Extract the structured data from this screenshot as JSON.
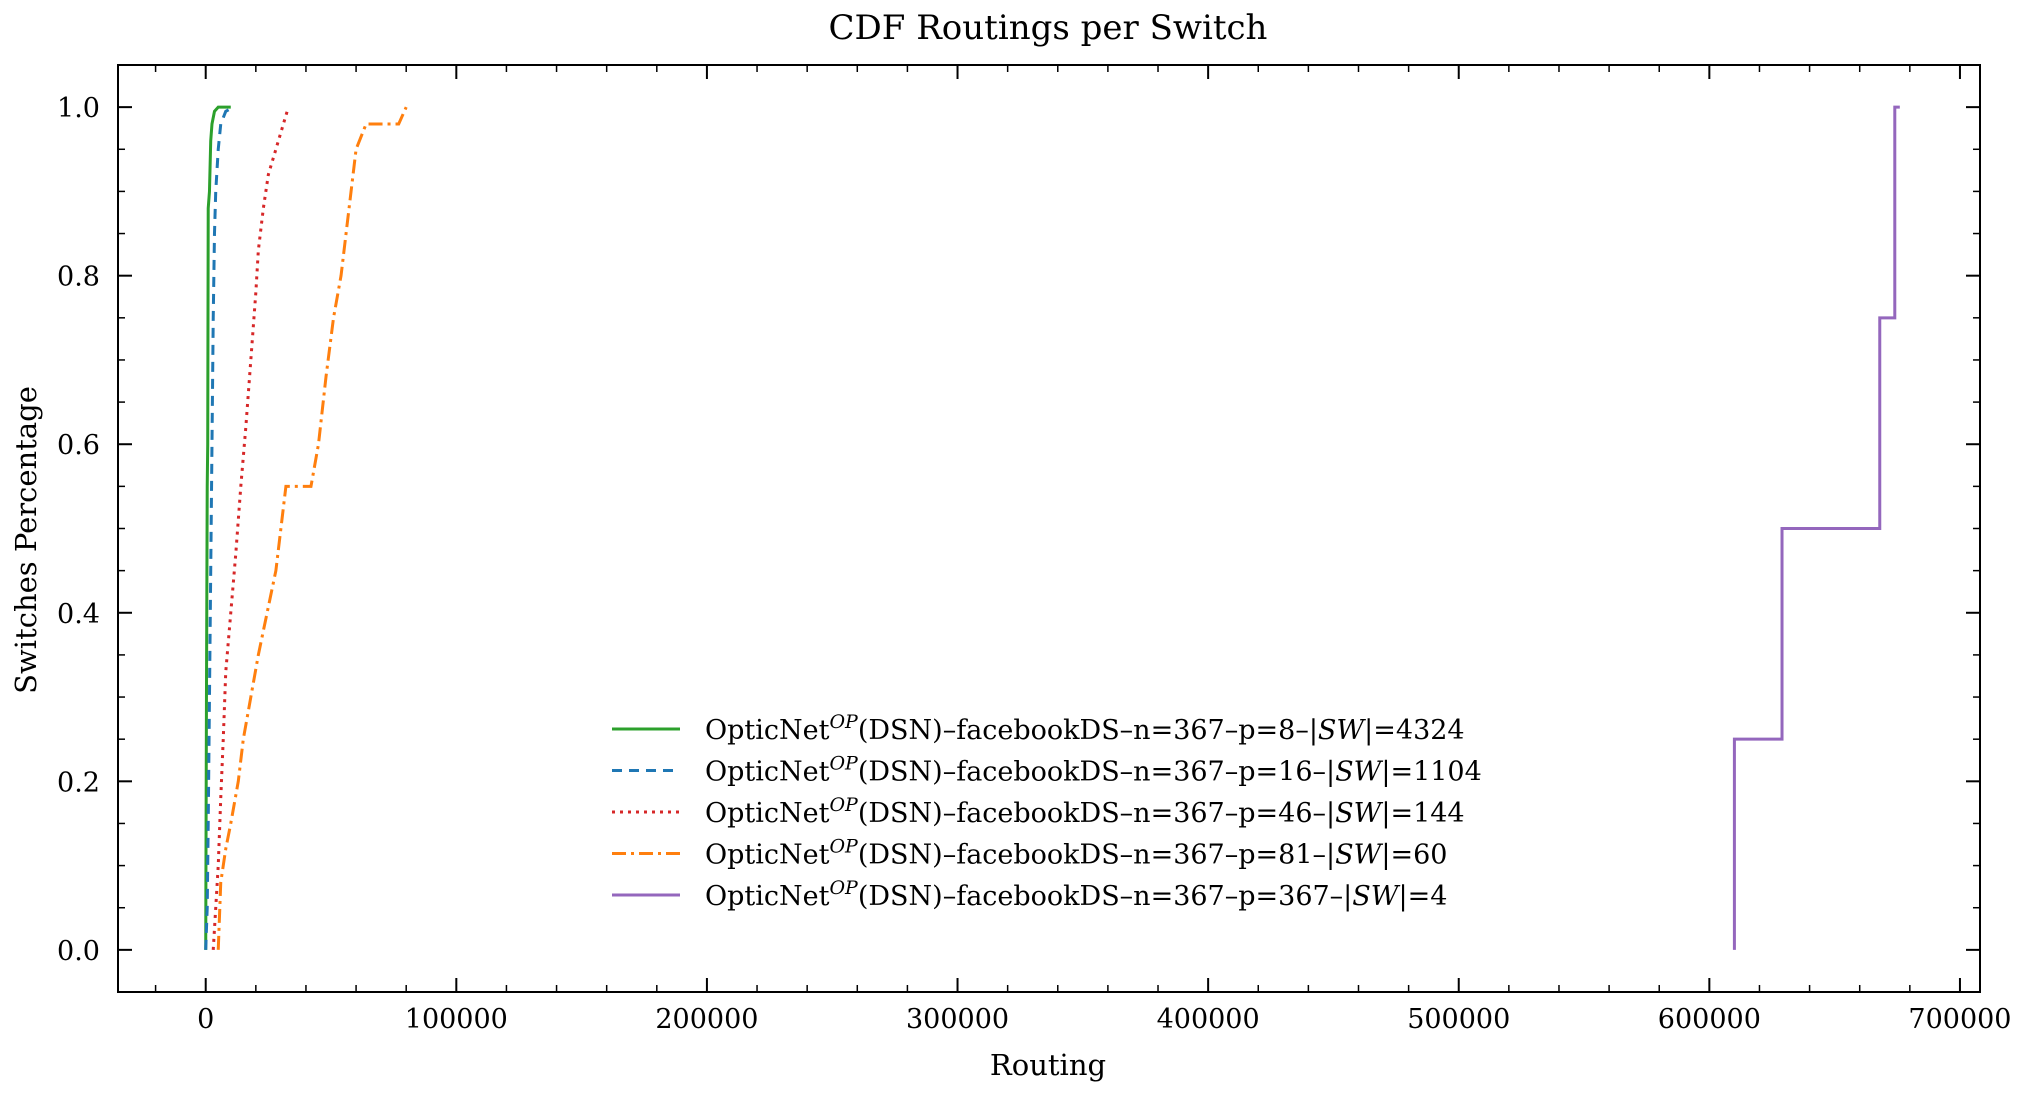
{
  "chart_data": {
    "type": "line",
    "title": "CDF Routings per Switch",
    "xlabel": "Routing",
    "ylabel": "Switches Percentage",
    "xlim": [
      -35000,
      708000
    ],
    "ylim": [
      -0.05,
      1.05
    ],
    "xticks": [
      0,
      100000,
      200000,
      300000,
      400000,
      500000,
      600000,
      700000
    ],
    "xtick_labels": [
      "0",
      "100000",
      "200000",
      "300000",
      "400000",
      "500000",
      "600000",
      "700000"
    ],
    "yticks": [
      0.0,
      0.2,
      0.4,
      0.6,
      0.8,
      1.0
    ],
    "ytick_labels": [
      "0.0",
      "0.2",
      "0.4",
      "0.6",
      "0.8",
      "1.0"
    ],
    "legend_position": "lower-center",
    "grid": false,
    "series": [
      {
        "name": "OpticNet^OP(DSN)–facebookDS–n=367–p=8–|SW|=4324",
        "legend_base": "OpticNet",
        "legend_sup": "OP",
        "legend_mid": "(DSN)–facebookDS–n=367–p=8–|",
        "legend_italic": "SW",
        "legend_end": "|=4324",
        "color": "#2ca02c",
        "dash": "",
        "points": [
          [
            0,
            0
          ],
          [
            300,
            0.3
          ],
          [
            600,
            0.55
          ],
          [
            800,
            0.6
          ],
          [
            1000,
            0.88
          ],
          [
            1500,
            0.9
          ],
          [
            2000,
            0.96
          ],
          [
            2500,
            0.98
          ],
          [
            3500,
            0.995
          ],
          [
            5000,
            1.0
          ],
          [
            10000,
            1.0
          ]
        ]
      },
      {
        "name": "OpticNet^OP(DSN)–facebookDS–n=367–p=16–|SW|=1104",
        "legend_base": "OpticNet",
        "legend_sup": "OP",
        "legend_mid": "(DSN)–facebookDS–n=367–p=16–|",
        "legend_italic": "SW",
        "legend_end": "|=1104",
        "color": "#1f77b4",
        "dash": "10,7",
        "points": [
          [
            0,
            0
          ],
          [
            600,
            0.05
          ],
          [
            1000,
            0.15
          ],
          [
            1500,
            0.3
          ],
          [
            2000,
            0.45
          ],
          [
            2500,
            0.6
          ],
          [
            3000,
            0.75
          ],
          [
            3500,
            0.85
          ],
          [
            4000,
            0.9
          ],
          [
            5000,
            0.95
          ],
          [
            6000,
            0.98
          ],
          [
            8000,
            0.995
          ],
          [
            11000,
            1.0
          ]
        ]
      },
      {
        "name": "OpticNet^OP(DSN)–facebookDS–n=367–p=46–|SW|=144",
        "legend_base": "OpticNet",
        "legend_sup": "OP",
        "legend_mid": "(DSN)–facebookDS–n=367–p=46–|",
        "legend_italic": "SW",
        "legend_end": "|=144",
        "color": "#d62728",
        "dash": "3,5",
        "points": [
          [
            3000,
            0
          ],
          [
            4000,
            0.05
          ],
          [
            5000,
            0.1
          ],
          [
            6000,
            0.18
          ],
          [
            7000,
            0.25
          ],
          [
            8000,
            0.33
          ],
          [
            10000,
            0.4
          ],
          [
            12000,
            0.47
          ],
          [
            14000,
            0.55
          ],
          [
            16000,
            0.62
          ],
          [
            18000,
            0.7
          ],
          [
            20000,
            0.78
          ],
          [
            21000,
            0.83
          ],
          [
            23000,
            0.88
          ],
          [
            25000,
            0.92
          ],
          [
            27000,
            0.94
          ],
          [
            29000,
            0.96
          ],
          [
            31000,
            0.98
          ],
          [
            33000,
            1.0
          ]
        ]
      },
      {
        "name": "OpticNet^OP(DSN)–facebookDS–n=367–p=81–|SW|=60",
        "legend_base": "OpticNet",
        "legend_sup": "OP",
        "legend_mid": "(DSN)–facebookDS–n=367–p=81–|",
        "legend_italic": "SW",
        "legend_end": "|=60",
        "color": "#ff7f0e",
        "dash": "14,5,3,5",
        "points": [
          [
            5000,
            0
          ],
          [
            6000,
            0.08
          ],
          [
            8000,
            0.12
          ],
          [
            10000,
            0.15
          ],
          [
            13000,
            0.2
          ],
          [
            15000,
            0.25
          ],
          [
            18000,
            0.3
          ],
          [
            21000,
            0.35
          ],
          [
            28000,
            0.45
          ],
          [
            30000,
            0.5
          ],
          [
            32000,
            0.55
          ],
          [
            42000,
            0.55
          ],
          [
            45000,
            0.6
          ],
          [
            48000,
            0.68
          ],
          [
            51000,
            0.75
          ],
          [
            54000,
            0.8
          ],
          [
            56000,
            0.85
          ],
          [
            58000,
            0.9
          ],
          [
            60000,
            0.95
          ],
          [
            64000,
            0.98
          ],
          [
            77000,
            0.98
          ],
          [
            80000,
            1.0
          ]
        ]
      },
      {
        "name": "OpticNet^OP(DSN)–facebookDS–n=367–p=367–|SW|=4",
        "legend_base": "OpticNet",
        "legend_sup": "OP",
        "legend_mid": "(DSN)–facebookDS–n=367–p=367–|",
        "legend_italic": "SW",
        "legend_end": "|=4",
        "color": "#9467bd",
        "dash": "",
        "points": [
          [
            610000,
            0
          ],
          [
            610000,
            0.25
          ],
          [
            629000,
            0.25
          ],
          [
            629000,
            0.5
          ],
          [
            668000,
            0.5
          ],
          [
            668000,
            0.75
          ],
          [
            674000,
            0.75
          ],
          [
            674000,
            1.0
          ],
          [
            676000,
            1.0
          ]
        ]
      }
    ]
  }
}
